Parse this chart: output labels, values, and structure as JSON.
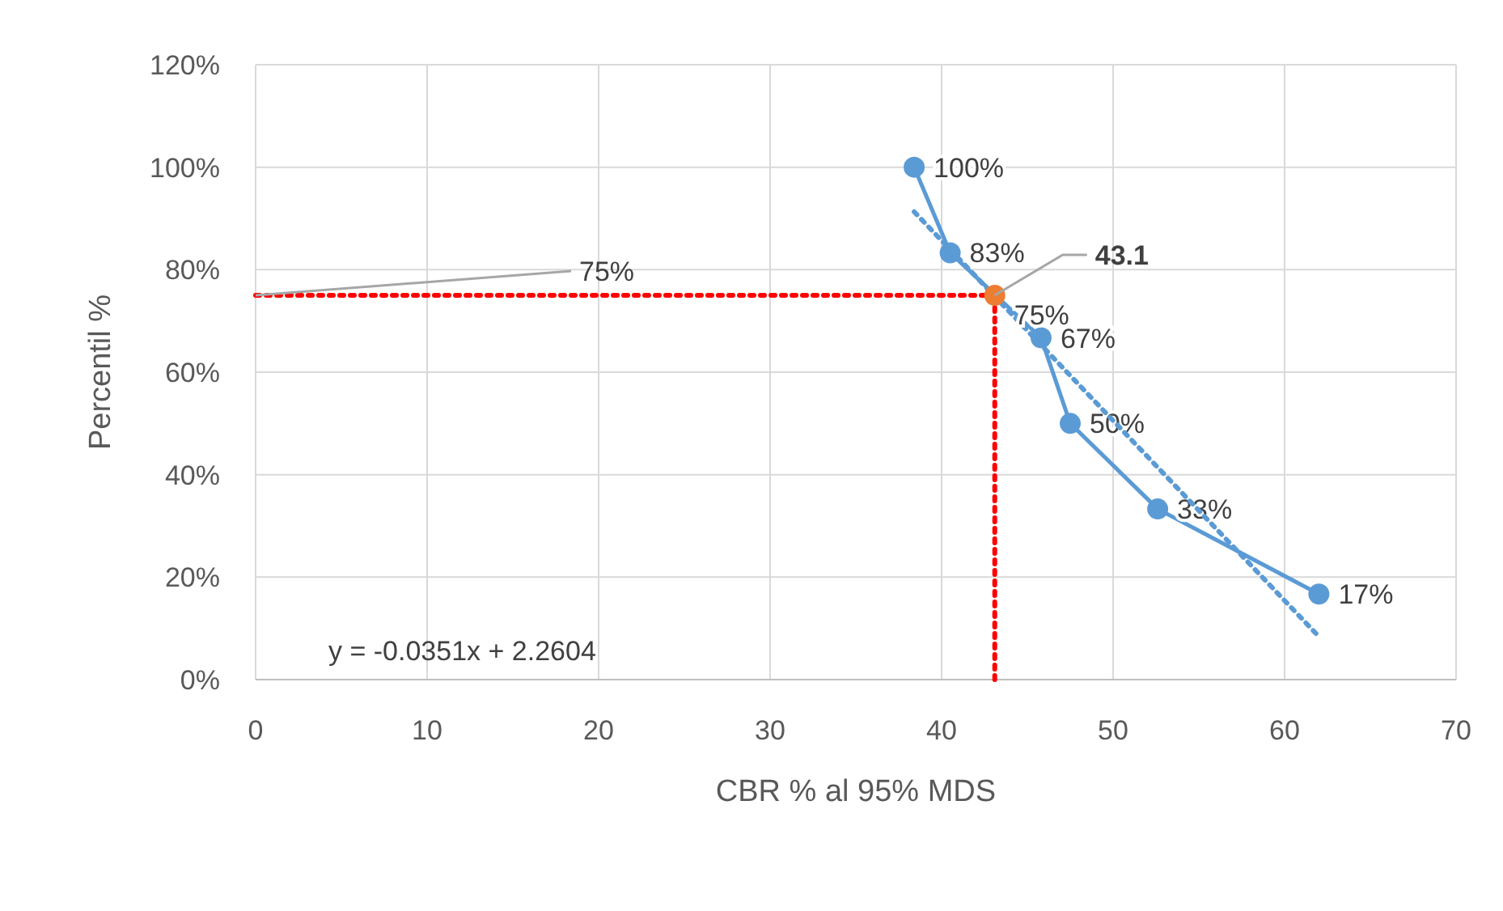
{
  "chart_data": {
    "type": "scatter",
    "xlabel": "CBR % al 95% MDS",
    "ylabel": "Percentil %",
    "xlim": [
      0,
      70
    ],
    "xticks": [
      0,
      10,
      20,
      30,
      40,
      50,
      60,
      70
    ],
    "ylim": [
      0,
      120
    ],
    "yticks": [
      {
        "value": 0,
        "label": "0%"
      },
      {
        "value": 20,
        "label": "20%"
      },
      {
        "value": 40,
        "label": "40%"
      },
      {
        "value": 60,
        "label": "60%"
      },
      {
        "value": 80,
        "label": "80%"
      },
      {
        "value": 100,
        "label": "100%"
      },
      {
        "value": 120,
        "label": "120%"
      }
    ],
    "grid": true,
    "series": [
      {
        "type": "line",
        "color": "#5b9bd5",
        "marker": "circle",
        "line_style": "solid",
        "x": [
          38.4,
          40.5,
          45.8,
          47.5,
          52.6,
          62.0
        ],
        "values": [
          100,
          83.3,
          66.7,
          50,
          33.3,
          16.7
        ],
        "value_labels": [
          "100%",
          "83%",
          "67%",
          "50%",
          "33%",
          "17%"
        ]
      },
      {
        "type": "line",
        "color": "#5b9bd5",
        "marker": "none",
        "line_style": "dotted",
        "x": [
          38.4,
          62.0
        ],
        "values": [
          91.3,
          8.4
        ]
      },
      {
        "type": "line",
        "color": "#ff0000",
        "marker": "none",
        "line_style": "dotted",
        "x": [
          0,
          43.1
        ],
        "values": [
          75,
          75
        ]
      },
      {
        "type": "line",
        "color": "#ff0000",
        "marker": "none",
        "line_style": "dotted",
        "x": [
          43.1,
          43.1
        ],
        "values": [
          0,
          75
        ]
      },
      {
        "color": "#ed7d31",
        "marker": "circle",
        "x": [
          43.1
        ],
        "values": [
          75
        ],
        "value_labels": [
          "75%"
        ]
      }
    ],
    "annotations": [
      {
        "text": "75%",
        "x": 0,
        "y": 75
      },
      {
        "text": "43.1",
        "x": 43.1,
        "y": 75
      },
      "y = -0.0351x + 2.2604"
    ]
  }
}
